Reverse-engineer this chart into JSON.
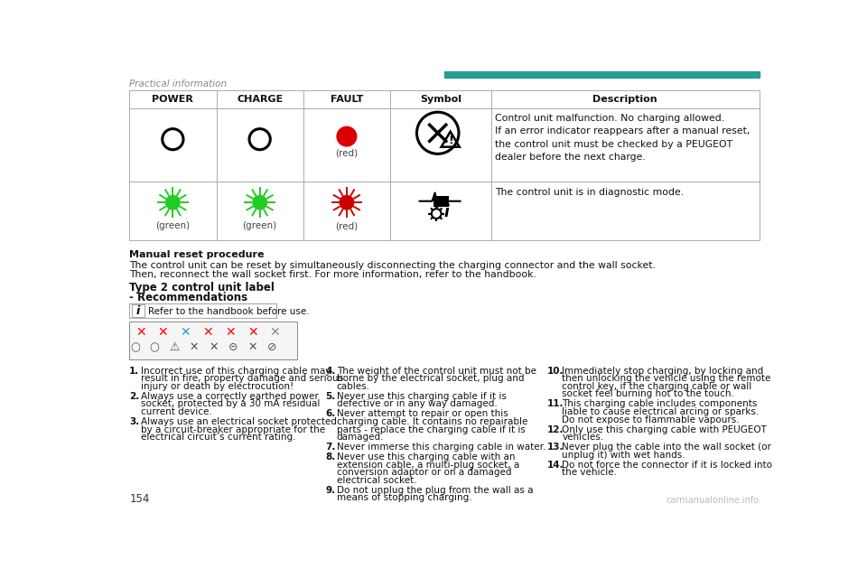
{
  "title_bar_color": "#2a9d8f",
  "header_text": "Practical information",
  "header_text_color": "#888888",
  "page_number": "154",
  "background_color": "#ffffff",
  "table_col_headers": [
    "POWER",
    "CHARGE",
    "FAULT",
    "Symbol",
    "Description"
  ],
  "row1_desc": "Control unit malfunction. No charging allowed.\nIf an error indicator reappears after a manual reset,\nthe control unit must be checked by a PEUGEOT\ndealer before the next charge.",
  "row2_desc": "The control unit is in diagnostic mode.",
  "manual_reset_title": "Manual reset procedure",
  "manual_reset_line1": "The control unit can be reset by simultaneously disconnecting the charging connector and the wall socket.",
  "manual_reset_line2": "Then, reconnect the wall socket first. For more information, refer to the handbook.",
  "type2_line1": "Type 2 control unit label",
  "type2_line2": "- Recommendations",
  "refer_text": "Refer to the handbook before use.",
  "items_col1": [
    [
      "1.",
      "Incorrect use of this charging cable may",
      "result in fire, property damage and serious",
      "injury or death by electrocution!"
    ],
    [
      "2.",
      "Always use a correctly earthed power",
      "socket, protected by a 30 mA residual",
      "current device."
    ],
    [
      "3.",
      "Always use an electrical socket protected",
      "by a circuit-breaker appropriate for the",
      "electrical circuit’s current rating."
    ]
  ],
  "items_col2": [
    [
      "4.",
      "The weight of the control unit must not be",
      "borne by the electrical socket, plug and",
      "cables."
    ],
    [
      "5.",
      "Never use this charging cable if it is",
      "defective or in any way damaged."
    ],
    [
      "6.",
      "Never attempt to repair or open this",
      "charging cable. It contains no repairable",
      "parts - replace the charging cable if it is",
      "damaged."
    ],
    [
      "7.",
      "Never immerse this charging cable in water."
    ],
    [
      "8.",
      "Never use this charging cable with an",
      "extension cable, a multi-plug socket, a",
      "conversion adaptor or on a damaged",
      "electrical socket."
    ],
    [
      "9.",
      "Do not unplug the plug from the wall as a",
      "means of stopping charging."
    ]
  ],
  "items_col3": [
    [
      "10.",
      "Immediately stop charging, by locking and",
      "then unlocking the vehicle using the remote",
      "control key, if the charging cable or wall",
      "socket feel burning hot to the touch."
    ],
    [
      "11.",
      "This charging cable includes components",
      "liable to cause electrical arcing or sparks.",
      "Do not expose to flammable vapours."
    ],
    [
      "12.",
      "Only use this charging cable with PEUGEOT",
      "vehicles."
    ],
    [
      "13.",
      "Never plug the cable into the wall socket (or",
      "unplug it) with wet hands."
    ],
    [
      "14.",
      "Do not force the connector if it is locked into",
      "the vehicle."
    ]
  ]
}
